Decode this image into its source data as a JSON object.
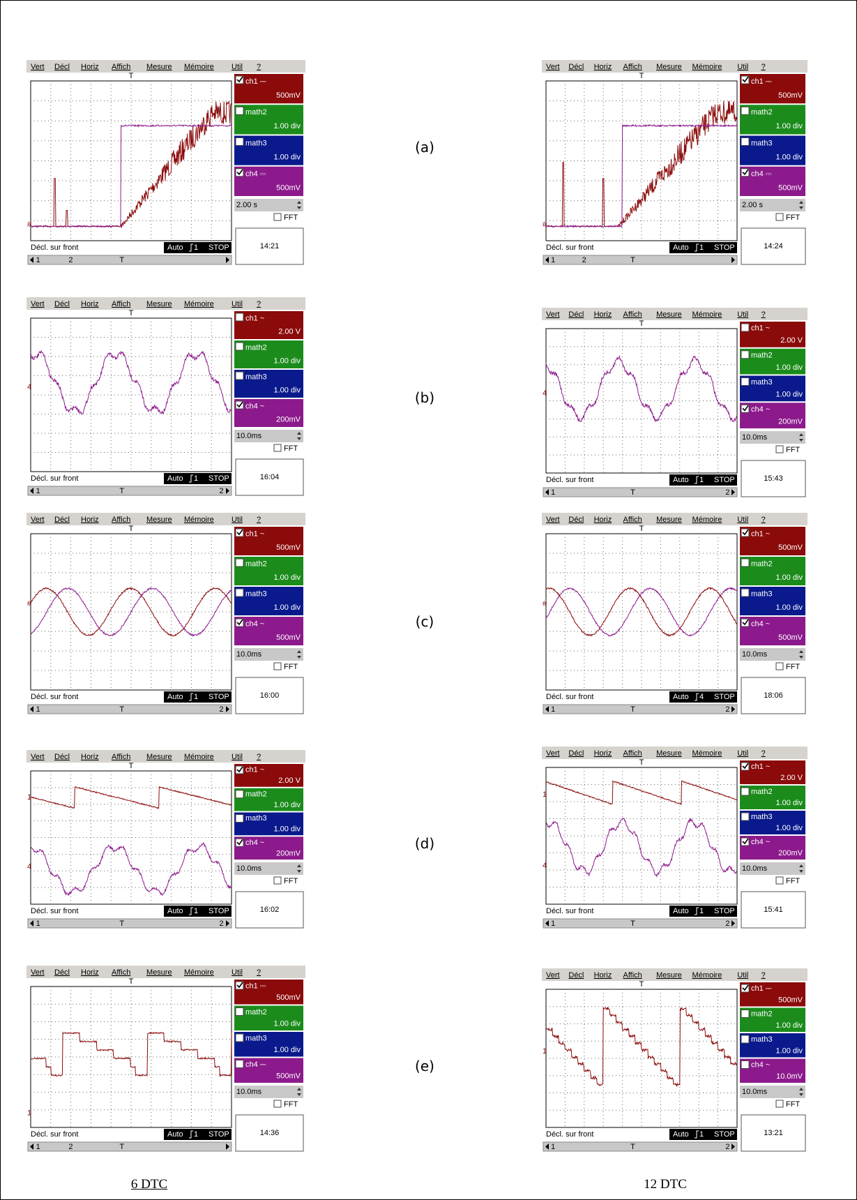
{
  "menu": [
    "Vert",
    "Décl",
    "Horiz",
    "Affich",
    "Mesure",
    "Mémoire",
    "Util",
    "?"
  ],
  "marker": "T",
  "fft": "FFT",
  "trigger_text": "Décl. sur front",
  "mode": "Auto",
  "state": "STOP",
  "rows": [
    {
      "label": "(a)",
      "panels": [
        {
          "channels": [
            {
              "name": "ch1 ⎓",
              "setting": "500mV",
              "checked": true,
              "color": "#8b0a0a"
            },
            {
              "name": "math2",
              "setting": "1.00 div",
              "checked": false,
              "color": "#1b8c1b"
            },
            {
              "name": "math3",
              "setting": "1.00 div",
              "checked": false,
              "color": "#0a1a8c"
            },
            {
              "name": "ch4 ⎓",
              "setting": "500mV",
              "checked": true,
              "color": "#8c1a8c"
            }
          ],
          "timebase": "2.00 s",
          "slope": "1",
          "time": "14:21",
          "markers": [
            "#"
          ],
          "scroll": [
            "1",
            "2",
            "T"
          ]
        },
        {
          "channels": [
            {
              "name": "ch1 ⎓",
              "setting": "500mV",
              "checked": true,
              "color": "#8b0a0a"
            },
            {
              "name": "math2",
              "setting": "1.00 div",
              "checked": false,
              "color": "#1b8c1b"
            },
            {
              "name": "math3",
              "setting": "1.00 div",
              "checked": false,
              "color": "#0a1a8c"
            },
            {
              "name": "ch4 ⎓",
              "setting": "500mV",
              "checked": true,
              "color": "#8c1a8c"
            }
          ],
          "timebase": "2.00 s",
          "slope": "1",
          "time": "14:24",
          "markers": [
            "#"
          ],
          "scroll": [
            "1",
            "2",
            "T"
          ]
        }
      ]
    },
    {
      "label": "(b)",
      "panels": [
        {
          "channels": [
            {
              "name": "ch1 ~",
              "setting": "2.00 V",
              "checked": false,
              "color": "#8b0a0a"
            },
            {
              "name": "math2",
              "setting": "1.00 div",
              "checked": false,
              "color": "#1b8c1b"
            },
            {
              "name": "math3",
              "setting": "1.00 div",
              "checked": false,
              "color": "#0a1a8c"
            },
            {
              "name": "ch4 ~",
              "setting": "200mV",
              "checked": true,
              "color": "#8c1a8c"
            }
          ],
          "timebase": "10.0ms",
          "slope": "1",
          "time": "16:04",
          "markers": [
            "4"
          ],
          "scroll": [
            "1",
            "T",
            "2"
          ]
        },
        {
          "channels": [
            {
              "name": "ch1 ~",
              "setting": "2.00 V",
              "checked": false,
              "color": "#8b0a0a"
            },
            {
              "name": "math2",
              "setting": "1.00 div",
              "checked": false,
              "color": "#1b8c1b"
            },
            {
              "name": "math3",
              "setting": "1.00 div",
              "checked": false,
              "color": "#0a1a8c"
            },
            {
              "name": "ch4 ~",
              "setting": "200mV",
              "checked": true,
              "color": "#8c1a8c"
            }
          ],
          "timebase": "10.0ms",
          "slope": "1",
          "time": "15:43",
          "markers": [
            "4"
          ],
          "scroll": [
            "1",
            "T",
            "2"
          ]
        }
      ]
    },
    {
      "label": "(c)",
      "panels": [
        {
          "channels": [
            {
              "name": "ch1 ~",
              "setting": "500mV",
              "checked": true,
              "color": "#8b0a0a"
            },
            {
              "name": "math2",
              "setting": "1.00 div",
              "checked": false,
              "color": "#1b8c1b"
            },
            {
              "name": "math3",
              "setting": "1.00 div",
              "checked": false,
              "color": "#0a1a8c"
            },
            {
              "name": "ch4 ~",
              "setting": "500mV",
              "checked": true,
              "color": "#8c1a8c"
            }
          ],
          "timebase": "10.0ms",
          "slope": "1",
          "time": "16:00",
          "markers": [
            "#"
          ],
          "scroll": [
            "1",
            "T",
            "2"
          ]
        },
        {
          "channels": [
            {
              "name": "ch1 ~",
              "setting": "500mV",
              "checked": true,
              "color": "#8b0a0a"
            },
            {
              "name": "math2",
              "setting": "1.00 div",
              "checked": false,
              "color": "#1b8c1b"
            },
            {
              "name": "math3",
              "setting": "1.00 div",
              "checked": false,
              "color": "#0a1a8c"
            },
            {
              "name": "ch4 ~",
              "setting": "500mV",
              "checked": true,
              "color": "#8c1a8c"
            }
          ],
          "timebase": "10.0ms",
          "slope": "4",
          "time": "18:06",
          "markers": [
            "#"
          ],
          "scroll": [
            "1",
            "T",
            "2"
          ]
        }
      ]
    },
    {
      "label": "(d)",
      "panels": [
        {
          "channels": [
            {
              "name": "ch1 ~",
              "setting": "2.00 V",
              "checked": true,
              "color": "#8b0a0a"
            },
            {
              "name": "math2",
              "setting": "1.00 div",
              "checked": false,
              "color": "#1b8c1b"
            },
            {
              "name": "math3",
              "setting": "1.00 div",
              "checked": false,
              "color": "#0a1a8c"
            },
            {
              "name": "ch4 ~",
              "setting": "200mV",
              "checked": true,
              "color": "#8c1a8c"
            }
          ],
          "timebase": "10.0ms",
          "slope": "1",
          "time": "16:02",
          "markers": [
            "1",
            "4"
          ],
          "scroll": [
            "1",
            "T",
            "2"
          ]
        },
        {
          "channels": [
            {
              "name": "ch1 ~",
              "setting": "2.00 V",
              "checked": true,
              "color": "#8b0a0a"
            },
            {
              "name": "math2",
              "setting": "1.00 div",
              "checked": false,
              "color": "#1b8c1b"
            },
            {
              "name": "math3",
              "setting": "1.00 div",
              "checked": false,
              "color": "#0a1a8c"
            },
            {
              "name": "ch4 ~",
              "setting": "200mV",
              "checked": true,
              "color": "#8c1a8c"
            }
          ],
          "timebase": "10.0ms",
          "slope": "1",
          "time": "15:41",
          "markers": [
            "1",
            "4"
          ],
          "scroll": [
            "1",
            "T",
            "2"
          ]
        }
      ]
    },
    {
      "label": "(e)",
      "panels": [
        {
          "channels": [
            {
              "name": "ch1 ⎓",
              "setting": "500mV",
              "checked": true,
              "color": "#8b0a0a"
            },
            {
              "name": "math2",
              "setting": "1.00 div",
              "checked": false,
              "color": "#1b8c1b"
            },
            {
              "name": "math3",
              "setting": "1.00 div",
              "checked": false,
              "color": "#0a1a8c"
            },
            {
              "name": "ch4 ⎓",
              "setting": "500mV",
              "checked": false,
              "color": "#8c1a8c"
            }
          ],
          "timebase": "10.0ms",
          "slope": "1",
          "time": "14:36",
          "markers": [
            "1"
          ],
          "scroll": [
            "1",
            "2",
            "T"
          ]
        },
        {
          "channels": [
            {
              "name": "ch1 ⎓",
              "setting": "500mV",
              "checked": true,
              "color": "#8b0a0a"
            },
            {
              "name": "math2",
              "setting": "1.00 div",
              "checked": false,
              "color": "#1b8c1b"
            },
            {
              "name": "math3",
              "setting": "1.00 div",
              "checked": false,
              "color": "#0a1a8c"
            },
            {
              "name": "ch4 ~",
              "setting": "10.0mV",
              "checked": false,
              "color": "#8c1a8c"
            }
          ],
          "timebase": "10.0ms",
          "slope": "1",
          "time": "13:21",
          "markers": [
            "1"
          ],
          "scroll": [
            "1",
            "T",
            "2"
          ]
        }
      ]
    }
  ],
  "captions": [
    "6 DTC",
    "12 DTC"
  ]
}
